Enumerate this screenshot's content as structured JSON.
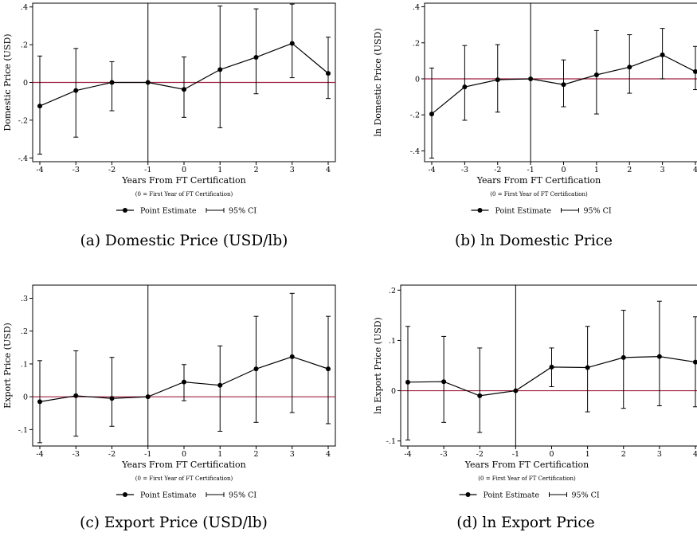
{
  "chart_data": [
    {
      "type": "line",
      "caption": "(a) Domestic Price (USD/lb)",
      "ylabel": "Domestic Price (USD)",
      "xlabel": "Years From FT Certification",
      "note": "(0 = First Year of FT Certification)",
      "x": [
        -4,
        -3,
        -2,
        -1,
        0,
        1,
        2,
        3,
        4
      ],
      "xticks": [
        "-4",
        "-3",
        "-2",
        "-1",
        "0",
        "1",
        "2",
        "3",
        "4"
      ],
      "yticks": [
        -0.4,
        -0.2,
        0,
        0.2,
        0.4
      ],
      "yticklabels": [
        "-.4",
        "-.2",
        "0",
        ".2",
        ".4"
      ],
      "ylim": [
        -0.42,
        0.42
      ],
      "series": [
        {
          "name": "Point Estimate",
          "values": [
            -0.125,
            -0.043,
            0.0,
            0.0,
            -0.037,
            0.068,
            0.133,
            0.207,
            0.048
          ]
        },
        {
          "name": "95% CI",
          "lower": [
            -0.38,
            -0.29,
            -0.15,
            0.0,
            -0.185,
            -0.24,
            -0.06,
            0.025,
            -0.085
          ],
          "upper": [
            0.14,
            0.18,
            0.11,
            0.0,
            0.135,
            0.405,
            0.39,
            0.415,
            0.24
          ]
        }
      ],
      "reference_line_y": 0,
      "vertical_line_x": -1
    },
    {
      "type": "line",
      "caption": "(b) ln Domestic Price",
      "ylabel": "ln Domestic Price (USD)",
      "xlabel": "Years From FT Certification",
      "note": "(0 = First Year of FT Certification)",
      "x": [
        -4,
        -3,
        -2,
        -1,
        0,
        1,
        2,
        3,
        4
      ],
      "xticks": [
        "-4",
        "-3",
        "-2",
        "-1",
        "0",
        "1",
        "2",
        "3",
        "4"
      ],
      "yticks": [
        -0.4,
        -0.2,
        0,
        0.2,
        0.4
      ],
      "yticklabels": [
        "-.4",
        "-.2",
        "0",
        ".2",
        ".4"
      ],
      "ylim": [
        -0.46,
        0.42
      ],
      "series": [
        {
          "name": "Point Estimate",
          "values": [
            -0.195,
            -0.045,
            -0.005,
            0.0,
            -0.032,
            0.022,
            0.065,
            0.133,
            0.04
          ]
        },
        {
          "name": "95% CI",
          "lower": [
            -0.44,
            -0.23,
            -0.185,
            0.0,
            -0.155,
            -0.195,
            -0.08,
            0.0,
            -0.06
          ],
          "upper": [
            0.06,
            0.185,
            0.19,
            0.0,
            0.105,
            0.268,
            0.245,
            0.28,
            0.18
          ]
        }
      ],
      "reference_line_y": 0,
      "vertical_line_x": -1
    },
    {
      "type": "line",
      "caption": "(c) Export Price (USD/lb)",
      "ylabel": "Export Price (USD)",
      "xlabel": "Years From FT Certification",
      "note": "(0 = First Year of FT Certification)",
      "x": [
        -4,
        -3,
        -2,
        -1,
        0,
        1,
        2,
        3,
        4
      ],
      "xticks": [
        "-4",
        "-3",
        "-2",
        "-1",
        "0",
        "1",
        "2",
        "3",
        "4"
      ],
      "yticks": [
        -0.1,
        0,
        0.1,
        0.2,
        0.3
      ],
      "yticklabels": [
        "-.1",
        "0",
        ".1",
        ".2",
        ".3"
      ],
      "ylim": [
        -0.15,
        0.34
      ],
      "series": [
        {
          "name": "Point Estimate",
          "values": [
            -0.015,
            0.003,
            -0.005,
            0.0,
            0.045,
            0.035,
            0.085,
            0.122,
            0.085
          ]
        },
        {
          "name": "95% CI",
          "lower": [
            -0.14,
            -0.12,
            -0.09,
            0.0,
            -0.012,
            -0.105,
            -0.078,
            -0.048,
            -0.082
          ],
          "upper": [
            0.11,
            0.14,
            0.12,
            0.0,
            0.098,
            0.155,
            0.245,
            0.315,
            0.245
          ]
        }
      ],
      "reference_line_y": 0,
      "vertical_line_x": -1
    },
    {
      "type": "line",
      "caption": "(d) ln Export Price",
      "ylabel": "ln Export Price (USD)",
      "xlabel": "Years From FT Certification",
      "note": "(0 = First Year of FT Certification)",
      "x": [
        -4,
        -3,
        -2,
        -1,
        0,
        1,
        2,
        3,
        4
      ],
      "xticks": [
        "-4",
        "-3",
        "-2",
        "-1",
        "0",
        "1",
        "2",
        "3",
        "4"
      ],
      "yticks": [
        -0.1,
        0,
        0.1,
        0.2
      ],
      "yticklabels": [
        "-.1",
        "0",
        ".1",
        ".2"
      ],
      "ylim": [
        -0.11,
        0.21
      ],
      "series": [
        {
          "name": "Point Estimate",
          "values": [
            0.017,
            0.018,
            -0.01,
            0.0,
            0.047,
            0.046,
            0.066,
            0.068,
            0.057
          ]
        },
        {
          "name": "95% CI",
          "lower": [
            -0.098,
            -0.063,
            -0.083,
            0.0,
            0.008,
            -0.042,
            -0.035,
            -0.03,
            -0.032
          ],
          "upper": [
            0.128,
            0.108,
            0.085,
            0.0,
            0.085,
            0.128,
            0.16,
            0.178,
            0.147
          ]
        }
      ],
      "reference_line_y": 0,
      "vertical_line_x": -1
    }
  ],
  "legend": {
    "point_label": "Point Estimate",
    "ci_label": "95% CI"
  },
  "colors": {
    "reference_line": "#a02040",
    "series": "#000000"
  }
}
